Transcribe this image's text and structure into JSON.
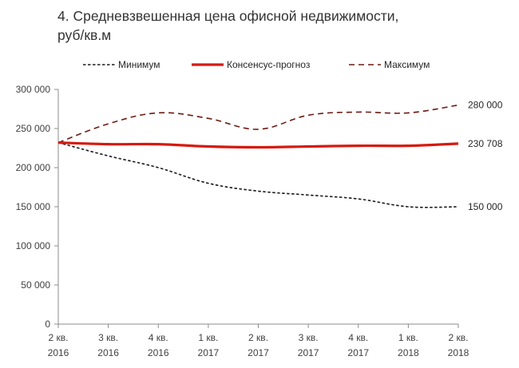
{
  "title_lines": [
    "4. Средневзвешенная цена офисной недвижимости,",
    "руб/кв.м"
  ],
  "chart_data": {
    "type": "line",
    "categories": [
      [
        "2 кв.",
        "2016"
      ],
      [
        "3 кв.",
        "2016"
      ],
      [
        "4 кв.",
        "2016"
      ],
      [
        "1 кв.",
        "2017"
      ],
      [
        "2 кв.",
        "2017"
      ],
      [
        "3 кв.",
        "2017"
      ],
      [
        "4 кв.",
        "2017"
      ],
      [
        "1 кв.",
        "2018"
      ],
      [
        "2 кв.",
        "2018"
      ]
    ],
    "ylim": [
      0,
      300000
    ],
    "yticks": [
      0,
      50000,
      100000,
      150000,
      200000,
      250000,
      300000
    ],
    "ytick_labels": [
      "0",
      "50 000",
      "100 000",
      "150 000",
      "200 000",
      "250 000",
      "300 000"
    ],
    "grid": false,
    "legend_position": "top",
    "series": [
      {
        "name": "Минимум",
        "style": "dotted",
        "color": "#1a1a1a",
        "values": [
          232000,
          215000,
          200000,
          180000,
          170000,
          165000,
          160000,
          150000,
          150000
        ]
      },
      {
        "name": "Консенсус-прогноз",
        "style": "solid",
        "color": "#d7190f",
        "values": [
          232000,
          230000,
          230000,
          227000,
          226000,
          227000,
          228000,
          228000,
          230708
        ]
      },
      {
        "name": "Максимум",
        "style": "dashed",
        "color": "#6b1b12",
        "values": [
          232000,
          256000,
          270000,
          263000,
          249000,
          267000,
          271000,
          270000,
          280000
        ]
      }
    ],
    "end_labels": [
      "280 000",
      "230 708",
      "150 000"
    ]
  }
}
